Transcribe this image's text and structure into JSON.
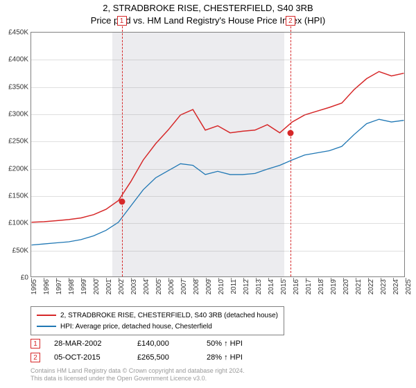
{
  "title_line1": "2, STRADBROKE RISE, CHESTERFIELD, S40 3RB",
  "title_line2": "Price paid vs. HM Land Registry's House Price Index (HPI)",
  "chart": {
    "type": "line",
    "background_color": "#ffffff",
    "grid_color": "rgba(128,128,128,0.25)",
    "border_color": "#808080",
    "y": {
      "min": 0,
      "max": 450000,
      "ticks": [
        0,
        50000,
        100000,
        150000,
        200000,
        250000,
        300000,
        350000,
        400000,
        450000
      ],
      "tick_labels": [
        "£0",
        "£50K",
        "£100K",
        "£150K",
        "£200K",
        "£250K",
        "£300K",
        "£350K",
        "£400K",
        "£450K"
      ],
      "label_fontsize": 10
    },
    "x": {
      "min": 1995,
      "max": 2025,
      "ticks": [
        1995,
        1996,
        1997,
        1998,
        1999,
        2000,
        2001,
        2002,
        2003,
        2004,
        2005,
        2006,
        2007,
        2008,
        2009,
        2010,
        2011,
        2012,
        2013,
        2014,
        2015,
        2016,
        2017,
        2018,
        2019,
        2020,
        2021,
        2022,
        2023,
        2024,
        2025
      ],
      "label_fontsize": 10
    },
    "shade_band": {
      "from_year": 2001.5,
      "to_year": 2015.25,
      "color": "rgba(200,200,210,0.35)"
    },
    "series": [
      {
        "name": "2, STRADBROKE RISE, CHESTERFIELD, S40 3RB (detached house)",
        "color": "#d62728",
        "line_width": 1.5,
        "points": [
          [
            1995,
            100000
          ],
          [
            1996,
            101000
          ],
          [
            1997,
            103000
          ],
          [
            1998,
            105000
          ],
          [
            1999,
            108000
          ],
          [
            2000,
            114000
          ],
          [
            2001,
            124000
          ],
          [
            2002,
            140000
          ],
          [
            2003,
            175000
          ],
          [
            2004,
            215000
          ],
          [
            2005,
            245000
          ],
          [
            2006,
            270000
          ],
          [
            2007,
            298000
          ],
          [
            2008,
            308000
          ],
          [
            2009,
            270000
          ],
          [
            2010,
            278000
          ],
          [
            2011,
            265000
          ],
          [
            2012,
            268000
          ],
          [
            2013,
            270000
          ],
          [
            2014,
            280000
          ],
          [
            2015,
            265000
          ],
          [
            2016,
            285000
          ],
          [
            2017,
            298000
          ],
          [
            2018,
            305000
          ],
          [
            2019,
            312000
          ],
          [
            2020,
            320000
          ],
          [
            2021,
            345000
          ],
          [
            2022,
            365000
          ],
          [
            2023,
            378000
          ],
          [
            2024,
            370000
          ],
          [
            2025,
            375000
          ]
        ]
      },
      {
        "name": "HPI: Average price, detached house, Chesterfield",
        "color": "#1f77b4",
        "line_width": 1.3,
        "points": [
          [
            1995,
            58000
          ],
          [
            1996,
            60000
          ],
          [
            1997,
            62000
          ],
          [
            1998,
            64000
          ],
          [
            1999,
            68000
          ],
          [
            2000,
            75000
          ],
          [
            2001,
            85000
          ],
          [
            2002,
            100000
          ],
          [
            2003,
            130000
          ],
          [
            2004,
            160000
          ],
          [
            2005,
            182000
          ],
          [
            2006,
            195000
          ],
          [
            2007,
            208000
          ],
          [
            2008,
            205000
          ],
          [
            2009,
            188000
          ],
          [
            2010,
            194000
          ],
          [
            2011,
            188000
          ],
          [
            2012,
            188000
          ],
          [
            2013,
            190000
          ],
          [
            2014,
            198000
          ],
          [
            2015,
            205000
          ],
          [
            2016,
            215000
          ],
          [
            2017,
            224000
          ],
          [
            2018,
            228000
          ],
          [
            2019,
            232000
          ],
          [
            2020,
            240000
          ],
          [
            2021,
            262000
          ],
          [
            2022,
            282000
          ],
          [
            2023,
            290000
          ],
          [
            2024,
            285000
          ],
          [
            2025,
            288000
          ]
        ]
      }
    ],
    "pins": [
      {
        "n": "1",
        "year": 2002.25,
        "value": 140000,
        "color": "#d62728"
      },
      {
        "n": "2",
        "year": 2015.77,
        "value": 265500,
        "color": "#d62728"
      }
    ]
  },
  "legend": {
    "items": [
      {
        "color": "#d62728",
        "label": "2, STRADBROKE RISE, CHESTERFIELD, S40 3RB (detached house)"
      },
      {
        "color": "#1f77b4",
        "label": "HPI: Average price, detached house, Chesterfield"
      }
    ]
  },
  "sales": [
    {
      "n": "1",
      "color": "#d62728",
      "date": "28-MAR-2002",
      "price": "£140,000",
      "hpi": "50% ↑ HPI"
    },
    {
      "n": "2",
      "color": "#d62728",
      "date": "05-OCT-2015",
      "price": "£265,500",
      "hpi": "28% ↑ HPI"
    }
  ],
  "credits": {
    "line1": "Contains HM Land Registry data © Crown copyright and database right 2024.",
    "line2": "This data is licensed under the Open Government Licence v3.0."
  }
}
